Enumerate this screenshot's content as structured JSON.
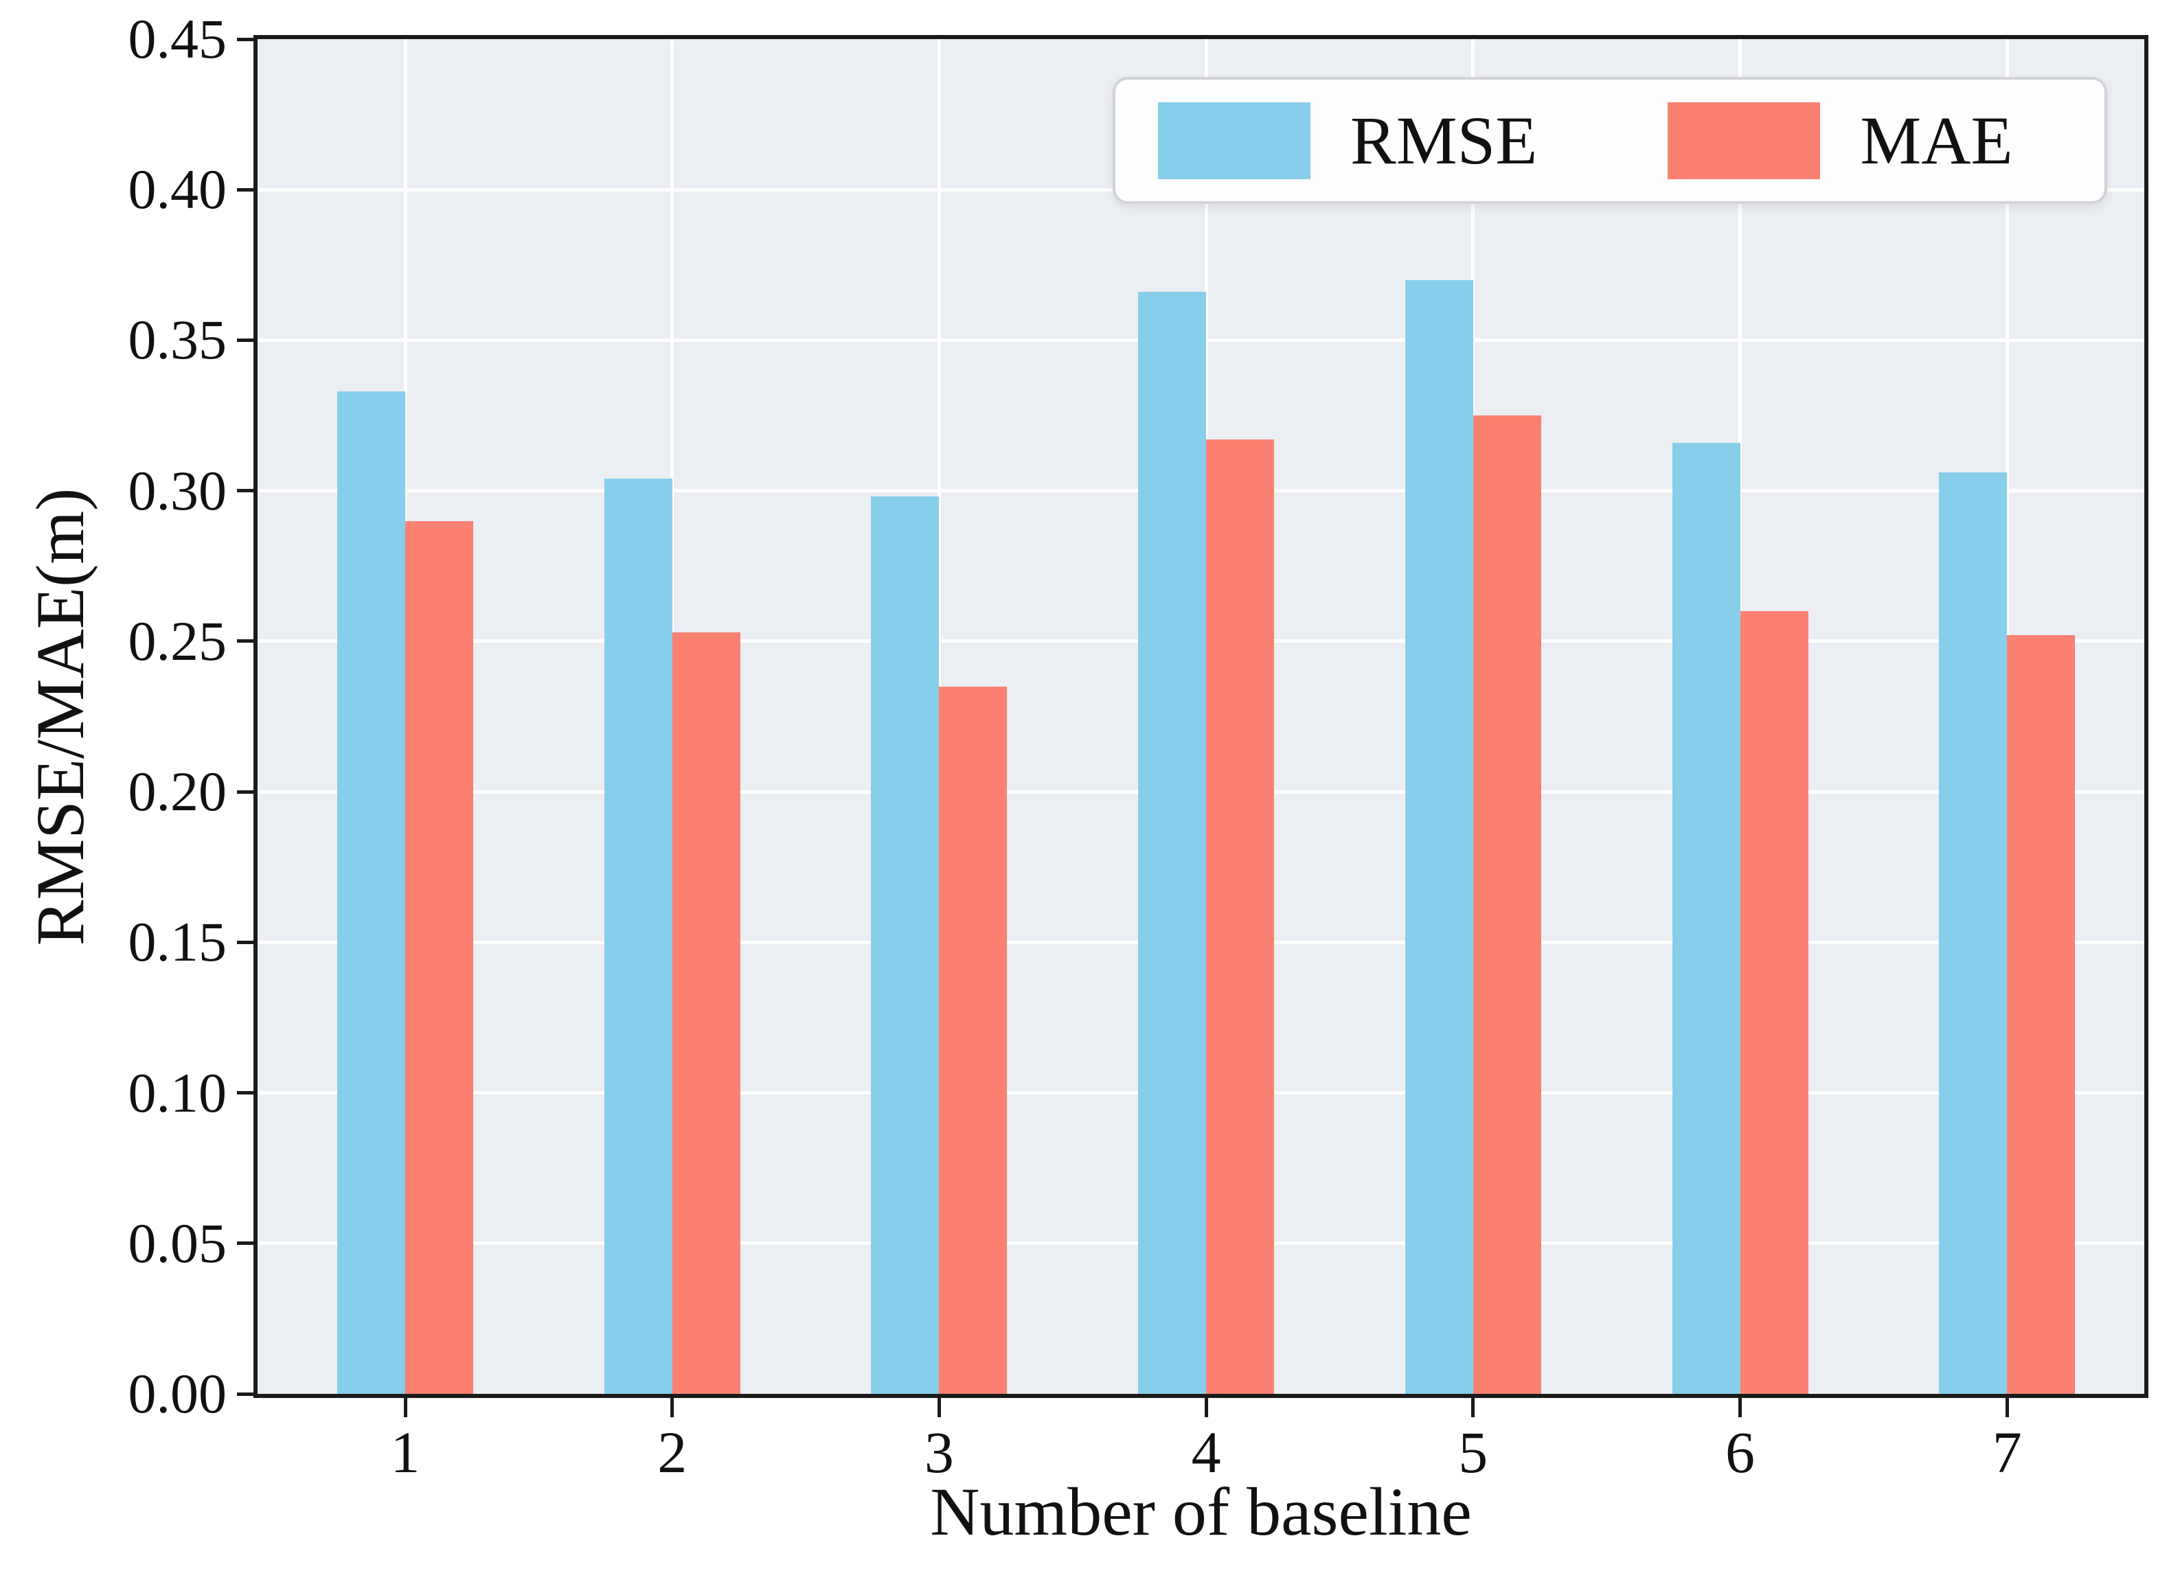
{
  "chart_data": {
    "type": "bar",
    "title": "",
    "xlabel": "Number of baseline",
    "ylabel": "RMSE/MAE(m)",
    "categories": [
      "1",
      "2",
      "3",
      "4",
      "5",
      "6",
      "7"
    ],
    "series": [
      {
        "name": "RMSE",
        "color": "#87CEEB",
        "values": [
          0.333,
          0.304,
          0.298,
          0.366,
          0.37,
          0.316,
          0.306
        ]
      },
      {
        "name": "MAE",
        "color": "#FA8072",
        "values": [
          0.29,
          0.253,
          0.235,
          0.317,
          0.325,
          0.26,
          0.252
        ]
      }
    ],
    "ylim": [
      0.0,
      0.45
    ],
    "ytick_step": 0.05,
    "ytick_labels": [
      "0.00",
      "0.05",
      "0.10",
      "0.15",
      "0.20",
      "0.25",
      "0.30",
      "0.35",
      "0.40",
      "0.45"
    ],
    "grid": true,
    "grid_color": "#FFFFFF",
    "plot_background": "#EBEEF3",
    "legend_position": "top-right",
    "legend_entries": [
      "RMSE",
      "MAE"
    ]
  }
}
